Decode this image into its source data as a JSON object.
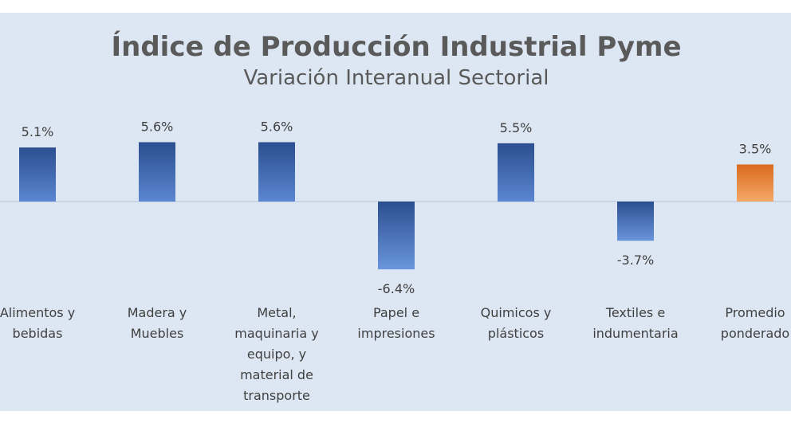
{
  "chart_data": {
    "type": "bar",
    "title": "Índice de Producción Industrial Pyme",
    "subtitle": "Variación Interanual Sectorial",
    "categories": [
      [
        "Alimentos y",
        "bebidas"
      ],
      [
        "Madera y",
        "Muebles"
      ],
      [
        "Metal,",
        "maquinaria y",
        "equipo, y",
        "material de",
        "transporte"
      ],
      [
        "Papel e",
        "impresiones"
      ],
      [
        "Quimicos y",
        "plásticos"
      ],
      [
        "Textiles e",
        "indumentaria"
      ],
      [
        "Promedio",
        "ponderado"
      ]
    ],
    "values": [
      5.1,
      5.6,
      5.6,
      -6.4,
      5.5,
      -3.7,
      3.5
    ],
    "labels": [
      "5.1%",
      "5.6%",
      "5.6%",
      "-6.4%",
      "5.5%",
      "-3.7%",
      "3.5%"
    ],
    "highlight_index": 6,
    "colors": {
      "bar": "#2f5597",
      "bar_light": "#5b86d1",
      "highlight": "#e2782d",
      "highlight_light": "#f4a968",
      "plot_bg": "#dde7f3",
      "axis": "#c5d1e0"
    },
    "grid": false,
    "legend": "none"
  }
}
